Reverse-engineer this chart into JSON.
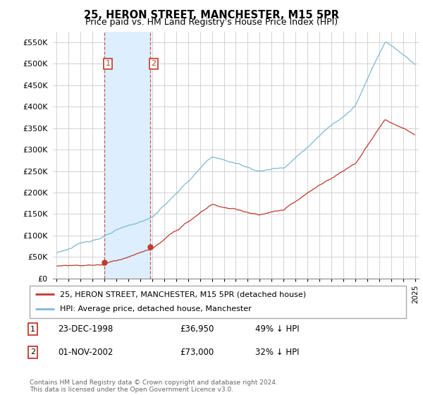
{
  "title": "25, HERON STREET, MANCHESTER, M15 5PR",
  "subtitle": "Price paid vs. HM Land Registry's House Price Index (HPI)",
  "legend_entry1": "25, HERON STREET, MANCHESTER, M15 5PR (detached house)",
  "legend_entry2": "HPI: Average price, detached house, Manchester",
  "transaction1_date": "23-DEC-1998",
  "transaction1_price": "£36,950",
  "transaction1_hpi": "49% ↓ HPI",
  "transaction2_date": "01-NOV-2002",
  "transaction2_price": "£73,000",
  "transaction2_hpi": "32% ↓ HPI",
  "footer": "Contains HM Land Registry data © Crown copyright and database right 2024.\nThis data is licensed under the Open Government Licence v3.0.",
  "hpi_color": "#7db8d8",
  "price_paid_color": "#c0392b",
  "highlight_color": "#ddeeff",
  "background_color": "#ffffff",
  "grid_color": "#cccccc",
  "ylim": [
    0,
    575000
  ],
  "yticks": [
    0,
    50000,
    100000,
    150000,
    200000,
    250000,
    300000,
    350000,
    400000,
    450000,
    500000,
    550000
  ],
  "transaction1_x": 1999.0,
  "transaction1_y": 36950,
  "transaction2_x": 2002.83,
  "transaction2_y": 73000,
  "highlight_xmin": 1999.0,
  "highlight_xmax": 2002.83,
  "xlim_min": 1994.7,
  "xlim_max": 2025.3
}
